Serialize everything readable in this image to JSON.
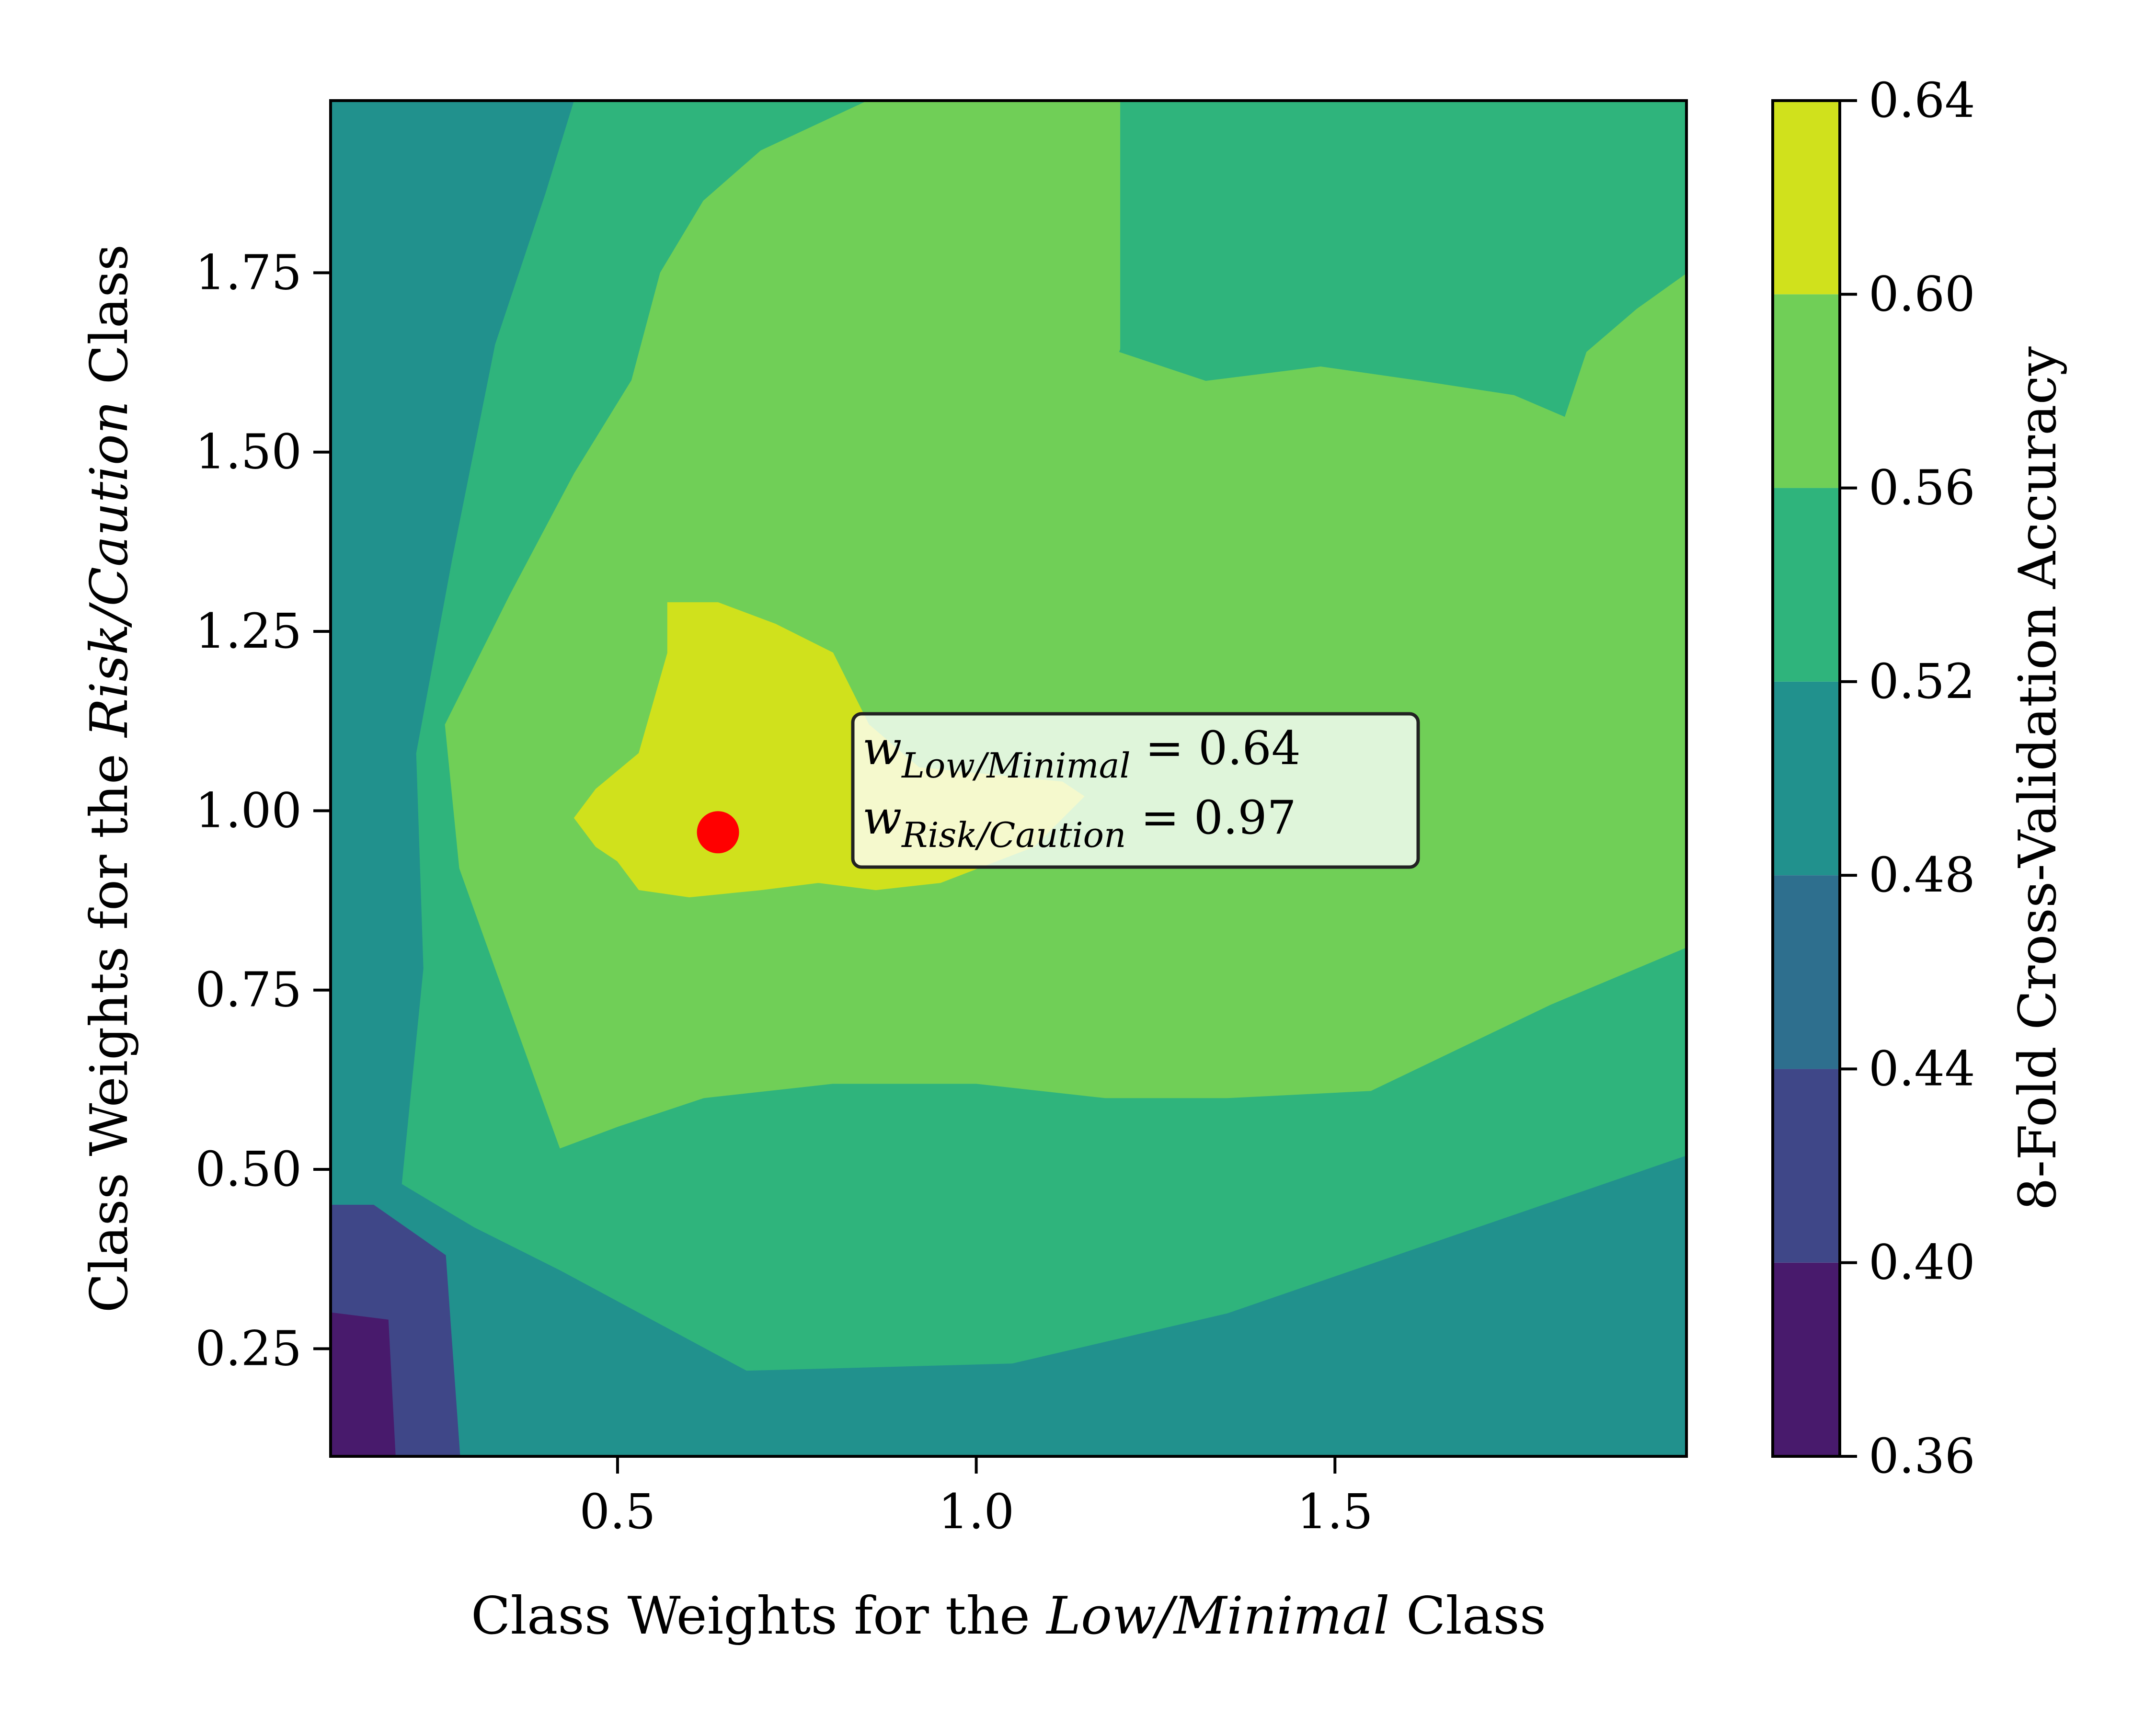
{
  "chart_data": {
    "type": "contour",
    "xlabel": {
      "prefix": "Class Weights for the ",
      "emphasis": "Low/Minimal",
      "suffix": " Class"
    },
    "ylabel": {
      "prefix": "Class Weights for the ",
      "emphasis": "Risk/Caution",
      "suffix": " Class"
    },
    "xlim": [
      0.1,
      1.99
    ],
    "ylim": [
      0.1,
      1.99
    ],
    "xticks": [
      {
        "value": 0.5,
        "label": "0.5"
      },
      {
        "value": 1.0,
        "label": "1.0"
      },
      {
        "value": 1.5,
        "label": "1.5"
      }
    ],
    "yticks": [
      {
        "value": 0.25,
        "label": "0.25"
      },
      {
        "value": 0.5,
        "label": "0.50"
      },
      {
        "value": 0.75,
        "label": "0.75"
      },
      {
        "value": 1.0,
        "label": "1.00"
      },
      {
        "value": 1.25,
        "label": "1.25"
      },
      {
        "value": 1.5,
        "label": "1.50"
      },
      {
        "value": 1.75,
        "label": "1.75"
      }
    ],
    "colorbar": {
      "label": "8-Fold Cross-Validation Accuracy",
      "levels": [
        0.36,
        0.4,
        0.44,
        0.48,
        0.52,
        0.56,
        0.6,
        0.64
      ],
      "level_labels": [
        "0.36",
        "0.40",
        "0.44",
        "0.48",
        "0.52",
        "0.56",
        "0.60",
        "0.64"
      ],
      "colors": [
        "#481a6c",
        "#3f4788",
        "#2e6f8e",
        "#21918d",
        "#2fb47c",
        "#70cf57",
        "#d0e11c"
      ]
    },
    "contour_regions": [
      {
        "band": 1,
        "polygon": [
          [
            0.1,
            0.1
          ],
          [
            0.28,
            0.1
          ],
          [
            0.26,
            0.38
          ],
          [
            0.16,
            0.45
          ],
          [
            0.1,
            0.45
          ]
        ]
      },
      {
        "band": 0,
        "polygon": [
          [
            0.1,
            0.1
          ],
          [
            0.19,
            0.1
          ],
          [
            0.18,
            0.29
          ],
          [
            0.1,
            0.3
          ]
        ]
      },
      {
        "band": 4,
        "polygon": [
          [
            0.2,
            0.48
          ],
          [
            0.3,
            0.42
          ],
          [
            0.42,
            0.36
          ],
          [
            0.68,
            0.22
          ],
          [
            1.05,
            0.23
          ],
          [
            1.35,
            0.3
          ],
          [
            1.99,
            0.52
          ],
          [
            1.99,
            1.99
          ],
          [
            1.08,
            1.99
          ],
          [
            0.72,
            1.99
          ],
          [
            0.55,
            1.99
          ],
          [
            0.44,
            1.99
          ],
          [
            0.4,
            1.86
          ],
          [
            0.33,
            1.65
          ],
          [
            0.27,
            1.35
          ],
          [
            0.22,
            1.08
          ],
          [
            0.23,
            0.78
          ]
        ]
      },
      {
        "band": 5,
        "polygon": [
          [
            0.42,
            0.53
          ],
          [
            0.5,
            0.56
          ],
          [
            0.62,
            0.6
          ],
          [
            0.8,
            0.62
          ],
          [
            1.0,
            0.62
          ],
          [
            1.18,
            0.6
          ],
          [
            1.35,
            0.6
          ],
          [
            1.55,
            0.61
          ],
          [
            1.8,
            0.73
          ],
          [
            1.99,
            0.81
          ],
          [
            1.99,
            1.75
          ],
          [
            1.92,
            1.7
          ],
          [
            1.85,
            1.64
          ],
          [
            1.82,
            1.55
          ],
          [
            1.75,
            1.58
          ],
          [
            1.62,
            1.6
          ],
          [
            1.48,
            1.62
          ],
          [
            1.32,
            1.6
          ],
          [
            1.2,
            1.64
          ],
          [
            1.2,
            1.99
          ],
          [
            0.85,
            1.99
          ],
          [
            0.7,
            1.92
          ],
          [
            0.62,
            1.85
          ],
          [
            0.56,
            1.75
          ],
          [
            0.52,
            1.6
          ],
          [
            0.44,
            1.47
          ],
          [
            0.35,
            1.3
          ],
          [
            0.26,
            1.12
          ],
          [
            0.28,
            0.92
          ],
          [
            0.33,
            0.78
          ]
        ]
      },
      {
        "band": 4,
        "polygon": [
          [
            1.2,
            1.64
          ],
          [
            1.32,
            1.6
          ],
          [
            1.48,
            1.62
          ],
          [
            1.62,
            1.6
          ],
          [
            1.75,
            1.58
          ],
          [
            1.82,
            1.55
          ],
          [
            1.85,
            1.64
          ],
          [
            1.92,
            1.7
          ],
          [
            1.99,
            1.75
          ],
          [
            1.99,
            1.99
          ],
          [
            1.65,
            1.99
          ],
          [
            1.55,
            1.99
          ],
          [
            1.55,
            1.92
          ],
          [
            1.45,
            1.85
          ],
          [
            1.35,
            1.86
          ],
          [
            1.27,
            1.82
          ]
        ]
      },
      {
        "band": 6,
        "polygon": [
          [
            0.44,
            0.99
          ],
          [
            0.47,
            0.95
          ],
          [
            0.5,
            0.93
          ],
          [
            0.53,
            0.89
          ],
          [
            0.6,
            0.88
          ],
          [
            0.7,
            0.89
          ],
          [
            0.78,
            0.9
          ],
          [
            0.86,
            0.89
          ],
          [
            0.95,
            0.9
          ],
          [
            1.08,
            0.95
          ],
          [
            1.15,
            1.02
          ],
          [
            1.12,
            1.04
          ],
          [
            1.02,
            1.05
          ],
          [
            0.92,
            1.06
          ],
          [
            0.85,
            1.12
          ],
          [
            0.8,
            1.22
          ],
          [
            0.72,
            1.26
          ],
          [
            0.64,
            1.29
          ],
          [
            0.57,
            1.29
          ],
          [
            0.57,
            1.22
          ],
          [
            0.53,
            1.08
          ],
          [
            0.47,
            1.03
          ]
        ]
      }
    ],
    "highlight_point": {
      "x": 0.64,
      "y": 0.97
    },
    "annotation": {
      "line1": "w_{Low/Minimal} = 0.64",
      "line2": "w_{Risk/Caution} = 0.97",
      "var1": "w",
      "sub1": "Low/Minimal",
      "value1": " = 0.64",
      "var2": "w",
      "sub2": "Risk/Caution",
      "value2": " = 0.97"
    }
  }
}
